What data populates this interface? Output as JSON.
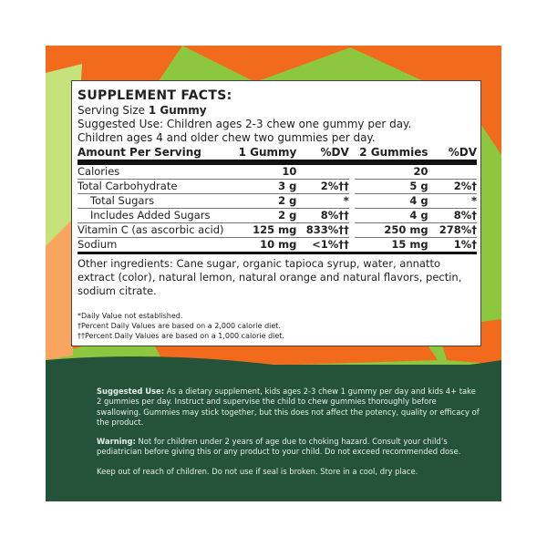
{
  "colors": {
    "orange": "#f26a1b",
    "lime": "#8dc63f",
    "dark_green": "#24533a",
    "light_orange": "#f8a560"
  },
  "facts": {
    "title": "SUPPLEMENT FACTS:",
    "serving_label": "Serving Size ",
    "serving_value": "1 Gummy",
    "use1": "Suggested Use: Children ages 2-3 chew one gummy per day.",
    "use2": "Children ages 4 and older chew two gummies per day.",
    "headers": [
      "Amount Per Serving",
      "1 Gummy",
      "%DV",
      "2 Gummies",
      "%DV"
    ],
    "rows": [
      {
        "name": "Calories",
        "v1": "10",
        "d1": "",
        "v2": "20",
        "d2": ""
      },
      {
        "name": "Total Carbohydrate",
        "v1": "3 g",
        "d1": "2%††",
        "v2": "5 g",
        "d2": "2%†"
      },
      {
        "name": "Total Sugars",
        "v1": "2 g",
        "d1": "*",
        "v2": "4 g",
        "d2": "*"
      },
      {
        "name": "Includes Added Sugars",
        "v1": "2 g",
        "d1": "8%††",
        "v2": "4 g",
        "d2": "8%†"
      },
      {
        "name": "Vitamin C (as ascorbic acid)",
        "v1": "125 mg",
        "d1": "833%††",
        "v2": "250 mg",
        "d2": "278%†"
      },
      {
        "name": "Sodium",
        "v1": "10 mg",
        "d1": "<1%††",
        "v2": "15 mg",
        "d2": "1%†"
      }
    ],
    "ingredients": "Other ingredients: Cane sugar, organic tapioca syrup, water, annatto extract (color), natural lemon, natural orange and natural flavors, pectin, sodium citrate.",
    "footnotes": [
      "*Daily Value not established.",
      "†Percent Daily Values are based on a 2,000 calorie diet.",
      "††Percent Daily Values are based on a 1,000 calorie diet."
    ]
  },
  "lower": {
    "use_label": "Suggested Use:",
    "use_text": " As a dietary supplement, kids ages 2-3 chew 1 gummy per day and kids 4+ take 2 gummies per day. Instruct and supervise the child to chew gummies thoroughly before swallowing. Gummies may stick together, but this does not affect the potency, quality or efficacy of the product.",
    "warning_label": "Warning:",
    "warning_text": " Not for children under 2 years of age due to choking hazard. Consult your child’s pediatrician before giving this or any product to your child. Do not exceed recommended dose.",
    "storage": "Keep out of reach of children. Do not use if seal is broken. Store in a cool, dry place."
  }
}
